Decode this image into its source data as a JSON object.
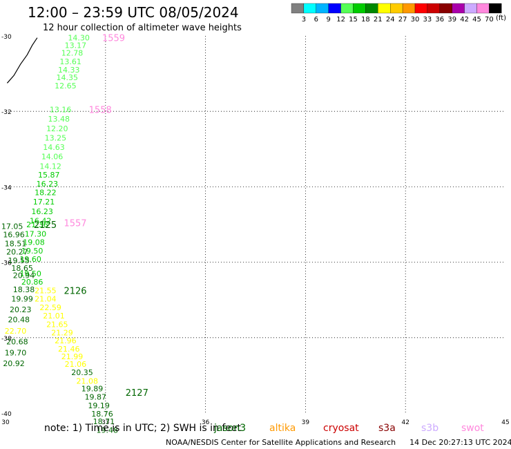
{
  "title": "12:00 – 23:59 UTC 08/05/2024",
  "subtitle": "12 hour collection of altimeter wave heights",
  "note": "note: 1) Time is in UTC; 2) SWH is in feet",
  "footer": {
    "org": "NOAA/NESDIS Center for Satellite Applications and Research",
    "timestamp": "14 Dec 20:27:13 UTC 2024"
  },
  "color_scale": {
    "unit": "(ft)",
    "colors": [
      "#808080",
      "#00ffff",
      "#00b4ff",
      "#0000ff",
      "#55ff55",
      "#00cc00",
      "#008800",
      "#ffff00",
      "#ffcc00",
      "#ff9900",
      "#ff0000",
      "#cc0000",
      "#880000",
      "#aa00aa",
      "#ccaaff",
      "#ff88dd",
      "#000000"
    ],
    "labels": [
      "3",
      "6",
      "9",
      "12",
      "15",
      "18",
      "21",
      "24",
      "27",
      "30",
      "33",
      "36",
      "39",
      "42",
      "45",
      "70"
    ]
  },
  "satellites": [
    {
      "name": "jason3",
      "color": "#006600"
    },
    {
      "name": "altika",
      "color": "#ff9900"
    },
    {
      "name": "cryosat",
      "color": "#cc0000"
    },
    {
      "name": "s3a",
      "color": "#880000"
    },
    {
      "name": "s3b",
      "color": "#ccaaff"
    },
    {
      "name": "swot",
      "color": "#ff88dd"
    }
  ],
  "chart_data": {
    "type": "scatter",
    "title": "12:00 – 23:59 UTC 08/05/2024",
    "subtitle": "12 hour collection of altimeter wave heights",
    "xlim": [
      30,
      45
    ],
    "ylim": [
      -40,
      -30
    ],
    "x_ticks": [
      "30",
      "33",
      "36",
      "39",
      "42",
      "45"
    ],
    "y_ticks": [
      "-30",
      "-32",
      "-34",
      "-36",
      "-38",
      "-40"
    ],
    "grid": true,
    "coastline": [
      [
        30.05,
        -31.25
      ],
      [
        30.25,
        -31.05
      ],
      [
        30.45,
        -30.75
      ],
      [
        30.65,
        -30.5
      ],
      [
        30.8,
        -30.25
      ],
      [
        30.95,
        -30.05
      ]
    ],
    "track_labels": [
      {
        "text": "1559",
        "lon": 32.9,
        "lat": -30.05,
        "color": "#ff88dd"
      },
      {
        "text": "1558",
        "lon": 32.5,
        "lat": -31.95,
        "color": "#ff88dd"
      },
      {
        "text": "1557",
        "lon": 31.75,
        "lat": -34.95,
        "color": "#ff88dd"
      },
      {
        "text": "2125",
        "lon": 30.85,
        "lat": -35.0,
        "color": "#006600"
      },
      {
        "text": "2126",
        "lon": 31.75,
        "lat": -36.75,
        "color": "#006600"
      },
      {
        "text": "2127",
        "lon": 33.6,
        "lat": -39.45,
        "color": "#006600"
      }
    ],
    "points": [
      {
        "lon": 32.2,
        "lat": -30.05,
        "value": "14.30",
        "color": "#55ff55"
      },
      {
        "lon": 32.1,
        "lat": -30.25,
        "value": "13.17",
        "color": "#55ff55"
      },
      {
        "lon": 32.0,
        "lat": -30.45,
        "value": "12.78",
        "color": "#55ff55"
      },
      {
        "lon": 31.95,
        "lat": -30.68,
        "value": "13.61",
        "color": "#55ff55"
      },
      {
        "lon": 31.9,
        "lat": -30.9,
        "value": "14.33",
        "color": "#55ff55"
      },
      {
        "lon": 31.85,
        "lat": -31.1,
        "value": "14.35",
        "color": "#55ff55"
      },
      {
        "lon": 31.8,
        "lat": -31.32,
        "value": "12.65",
        "color": "#55ff55"
      },
      {
        "lon": 31.65,
        "lat": -31.95,
        "value": "13.16",
        "color": "#55ff55"
      },
      {
        "lon": 31.6,
        "lat": -32.2,
        "value": "13.48",
        "color": "#55ff55"
      },
      {
        "lon": 31.55,
        "lat": -32.45,
        "value": "12.20",
        "color": "#55ff55"
      },
      {
        "lon": 31.5,
        "lat": -32.7,
        "value": "13.25",
        "color": "#55ff55"
      },
      {
        "lon": 31.45,
        "lat": -32.95,
        "value": "14.63",
        "color": "#55ff55"
      },
      {
        "lon": 31.4,
        "lat": -33.2,
        "value": "14.06",
        "color": "#55ff55"
      },
      {
        "lon": 31.35,
        "lat": -33.45,
        "value": "14.12",
        "color": "#55ff55"
      },
      {
        "lon": 31.3,
        "lat": -33.68,
        "value": "15.87",
        "color": "#00cc00"
      },
      {
        "lon": 31.25,
        "lat": -33.92,
        "value": "16.23",
        "color": "#00cc00"
      },
      {
        "lon": 31.2,
        "lat": -34.15,
        "value": "18.22",
        "color": "#00cc00"
      },
      {
        "lon": 31.15,
        "lat": -34.4,
        "value": "17.21",
        "color": "#00cc00"
      },
      {
        "lon": 31.1,
        "lat": -34.65,
        "value": "16.23",
        "color": "#00cc00"
      },
      {
        "lon": 31.05,
        "lat": -34.9,
        "value": "16.42",
        "color": "#00cc00"
      },
      {
        "lon": 30.95,
        "lat": -35.0,
        "value": "21.36",
        "color": "#00cc00"
      },
      {
        "lon": 30.9,
        "lat": -35.25,
        "value": "17.30",
        "color": "#00cc00"
      },
      {
        "lon": 30.85,
        "lat": -35.47,
        "value": "19.08",
        "color": "#00cc00"
      },
      {
        "lon": 30.8,
        "lat": -35.7,
        "value": "19.50",
        "color": "#00cc00"
      },
      {
        "lon": 30.75,
        "lat": -35.92,
        "value": "19.60",
        "color": "#00cc00"
      },
      {
        "lon": 30.75,
        "lat": -36.3,
        "value": "19.50",
        "color": "#00cc00"
      },
      {
        "lon": 30.8,
        "lat": -36.52,
        "value": "20.86",
        "color": "#00cc00"
      },
      {
        "lon": 30.2,
        "lat": -35.05,
        "value": "17.05",
        "color": "#006600"
      },
      {
        "lon": 30.25,
        "lat": -35.27,
        "value": "16.96",
        "color": "#006600"
      },
      {
        "lon": 30.3,
        "lat": -35.5,
        "value": "18.51",
        "color": "#006600"
      },
      {
        "lon": 30.35,
        "lat": -35.72,
        "value": "20.27",
        "color": "#006600"
      },
      {
        "lon": 30.4,
        "lat": -35.95,
        "value": "19.55",
        "color": "#006600"
      },
      {
        "lon": 30.5,
        "lat": -36.15,
        "value": "18.65",
        "color": "#006600"
      },
      {
        "lon": 30.55,
        "lat": -36.35,
        "value": "20.94",
        "color": "#006600"
      },
      {
        "lon": 30.55,
        "lat": -36.72,
        "value": "18.38",
        "color": "#006600"
      },
      {
        "lon": 30.5,
        "lat": -36.97,
        "value": "19.99",
        "color": "#006600"
      },
      {
        "lon": 30.45,
        "lat": -37.25,
        "value": "20.23",
        "color": "#006600"
      },
      {
        "lon": 30.4,
        "lat": -37.52,
        "value": "20.48",
        "color": "#006600"
      },
      {
        "lon": 30.35,
        "lat": -38.1,
        "value": "20.68",
        "color": "#006600"
      },
      {
        "lon": 30.3,
        "lat": -38.4,
        "value": "19.70",
        "color": "#006600"
      },
      {
        "lon": 30.25,
        "lat": -38.68,
        "value": "20.92",
        "color": "#006600"
      },
      {
        "lon": 30.3,
        "lat": -37.82,
        "value": "22.70",
        "color": "#ffff00"
      },
      {
        "lon": 31.2,
        "lat": -36.75,
        "value": "21.55",
        "color": "#ffff00"
      },
      {
        "lon": 31.2,
        "lat": -36.97,
        "value": "21.04",
        "color": "#ffff00"
      },
      {
        "lon": 31.35,
        "lat": -37.2,
        "value": "22.59",
        "color": "#ffff00"
      },
      {
        "lon": 31.45,
        "lat": -37.42,
        "value": "21.01",
        "color": "#ffff00"
      },
      {
        "lon": 31.55,
        "lat": -37.65,
        "value": "21.65",
        "color": "#ffff00"
      },
      {
        "lon": 31.7,
        "lat": -37.87,
        "value": "21.29",
        "color": "#ffff00"
      },
      {
        "lon": 31.8,
        "lat": -38.08,
        "value": "21.96",
        "color": "#ffff00"
      },
      {
        "lon": 31.9,
        "lat": -38.3,
        "value": "21.46",
        "color": "#ffff00"
      },
      {
        "lon": 32.0,
        "lat": -38.5,
        "value": "21.99",
        "color": "#ffff00"
      },
      {
        "lon": 32.1,
        "lat": -38.7,
        "value": "21.06",
        "color": "#ffff00"
      },
      {
        "lon": 32.45,
        "lat": -39.15,
        "value": "21.08",
        "color": "#ffff00"
      },
      {
        "lon": 32.3,
        "lat": -38.92,
        "value": "20.35",
        "color": "#006600"
      },
      {
        "lon": 32.6,
        "lat": -39.35,
        "value": "19.89",
        "color": "#006600"
      },
      {
        "lon": 32.7,
        "lat": -39.57,
        "value": "19.87",
        "color": "#006600"
      },
      {
        "lon": 32.8,
        "lat": -39.8,
        "value": "19.19",
        "color": "#006600"
      },
      {
        "lon": 32.9,
        "lat": -40.02,
        "value": "18.76",
        "color": "#006600"
      },
      {
        "lon": 32.95,
        "lat": -40.22,
        "value": "18.71",
        "color": "#006600"
      },
      {
        "lon": 33.05,
        "lat": -40.45,
        "value": "19.48",
        "color": "#006600"
      }
    ]
  }
}
